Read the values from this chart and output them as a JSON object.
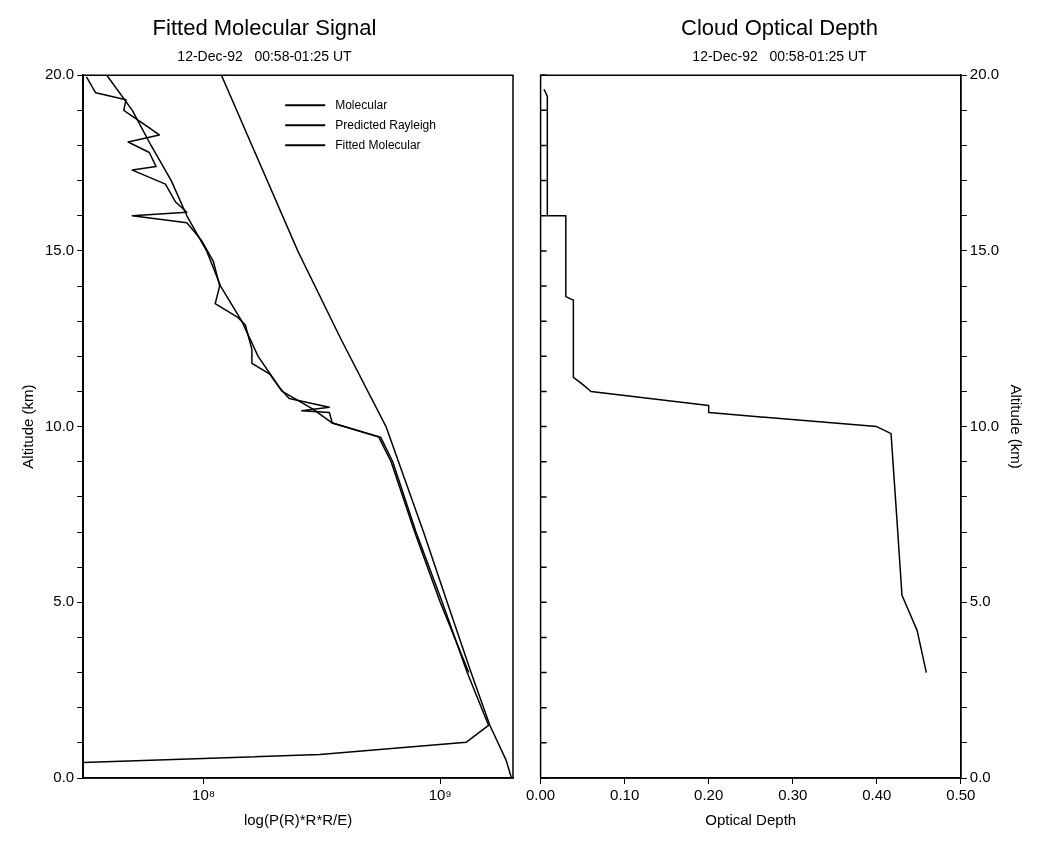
{
  "chart_data": [
    {
      "type": "line",
      "title": "Fitted Molecular Signal",
      "subtitle": "12-Dec-92   00:58-01:25 UT",
      "xlabel": "log(P(R)*R*R/E)",
      "ylabel": "Altitude (km)",
      "log": "x",
      "xlim": [
        31000000,
        2030000000
      ],
      "xticks": [
        {
          "value": 100000000,
          "label": "10⁸"
        },
        {
          "value": 1000000000,
          "label": "10⁹"
        }
      ],
      "ylim": [
        0,
        20
      ],
      "yticks": [
        {
          "value": 0,
          "label": "0.0"
        },
        {
          "value": 1,
          "label": null
        },
        {
          "value": 2,
          "label": null
        },
        {
          "value": 3,
          "label": null
        },
        {
          "value": 4,
          "label": null
        },
        {
          "value": 5,
          "label": "5.0"
        },
        {
          "value": 6,
          "label": null
        },
        {
          "value": 7,
          "label": null
        },
        {
          "value": 8,
          "label": null
        },
        {
          "value": 9,
          "label": null
        },
        {
          "value": 10,
          "label": "10.0"
        },
        {
          "value": 11,
          "label": null
        },
        {
          "value": 12,
          "label": null
        },
        {
          "value": 13,
          "label": null
        },
        {
          "value": 14,
          "label": null
        },
        {
          "value": 15,
          "label": "15.0"
        },
        {
          "value": 16,
          "label": null
        },
        {
          "value": 17,
          "label": null
        },
        {
          "value": 18,
          "label": null
        },
        {
          "value": 19,
          "label": null
        },
        {
          "value": 20,
          "label": "20.0"
        }
      ],
      "legend": "top right",
      "marker": "none",
      "series": [
        {
          "name": "Molecular",
          "color": "#000000",
          "x": [
            31000000,
            310000000,
            1290000000,
            1600000000,
            1300000000,
            1020000000,
            790000000,
            630000000,
            560000000,
            350000000,
            340000000,
            260000000,
            340000000,
            230000000,
            210000000,
            190000000,
            160000000,
            160000000,
            150000000,
            140000000,
            112000000,
            117000000,
            110000000,
            98000000,
            85000000,
            50000000,
            85000000,
            76000000,
            69000000,
            50000000,
            63000000,
            59000000,
            48000000,
            65000000,
            59000000,
            46000000,
            47000000,
            35000000,
            32000000
          ],
          "values": [
            0.44,
            0.67,
            1.02,
            1.5,
            3,
            5,
            7,
            9,
            9.7,
            10.1,
            10.4,
            10.45,
            10.55,
            10.8,
            11.1,
            11.5,
            11.8,
            12.2,
            12.9,
            13.1,
            13.5,
            14.0,
            14.7,
            15.3,
            15.8,
            16.0,
            16.1,
            16.4,
            16.9,
            17.3,
            17.4,
            17.8,
            18.1,
            18.3,
            18.5,
            19.0,
            19.3,
            19.5,
            19.95
          ]
        },
        {
          "name": "Predicted Rayleigh",
          "color": "#000000",
          "x": [
            2000000000,
            1900000000,
            1620000000,
            1350000000,
            1070000000,
            850000000,
            590000000,
            380000000,
            250000000,
            119000000
          ],
          "values": [
            0,
            0.5,
            1.5,
            3,
            5,
            7,
            10,
            12.5,
            15,
            20
          ]
        },
        {
          "name": "Fitted Molecular",
          "color": "#000000",
          "x": [
            1320000000,
            1000000000,
            780000000,
            620000000,
            550000000,
            350000000,
            290000000,
            215000000,
            170000000,
            145000000,
            118000000,
            103000000,
            85000000,
            73000000,
            60000000,
            50000000,
            39000000
          ],
          "values": [
            3,
            5,
            7,
            9,
            9.7,
            10.1,
            10.5,
            11,
            12,
            13,
            14,
            15,
            16,
            17,
            18,
            19,
            20
          ]
        }
      ]
    },
    {
      "type": "line",
      "title": "Cloud Optical Depth",
      "subtitle": "12-Dec-92   00:58-01:25 UT",
      "xlabel": "Optical Depth",
      "y2label": "Altitude (km)",
      "xlim": [
        0,
        0.5
      ],
      "xticks": [
        {
          "value": 0,
          "label": "0.00"
        },
        {
          "value": 0.1,
          "label": "0.10"
        },
        {
          "value": 0.2,
          "label": "0.20"
        },
        {
          "value": 0.3,
          "label": "0.30"
        },
        {
          "value": 0.4,
          "label": "0.40"
        },
        {
          "value": 0.5,
          "label": "0.50"
        }
      ],
      "y2lim": [
        0,
        20
      ],
      "y2ticks": [
        {
          "value": 0,
          "label": "0.0"
        },
        {
          "value": 1,
          "label": null
        },
        {
          "value": 2,
          "label": null
        },
        {
          "value": 3,
          "label": null
        },
        {
          "value": 4,
          "label": null
        },
        {
          "value": 5,
          "label": "5.0"
        },
        {
          "value": 6,
          "label": null
        },
        {
          "value": 7,
          "label": null
        },
        {
          "value": 8,
          "label": null
        },
        {
          "value": 9,
          "label": null
        },
        {
          "value": 10,
          "label": "10.0"
        },
        {
          "value": 11,
          "label": null
        },
        {
          "value": 12,
          "label": null
        },
        {
          "value": 13,
          "label": null
        },
        {
          "value": 14,
          "label": null
        },
        {
          "value": 15,
          "label": "15.0"
        },
        {
          "value": 16,
          "label": null
        },
        {
          "value": 17,
          "label": null
        },
        {
          "value": 18,
          "label": null
        },
        {
          "value": 19,
          "label": null
        },
        {
          "value": 20,
          "label": "20.0"
        }
      ],
      "marker": "none",
      "series": [
        {
          "color": "#000000",
          "axis": "y2",
          "x": [
            0.004,
            0.008,
            0.008,
            0.03,
            0.03,
            0.039,
            0.039,
            0.05,
            0.06,
            0.2,
            0.2,
            0.4,
            0.417,
            0.423,
            0.43,
            0.448,
            0.459
          ],
          "values": [
            19.6,
            19.4,
            16.0,
            16.0,
            13.7,
            13.6,
            11.4,
            11.2,
            11.0,
            10.6,
            10.4,
            10.0,
            9.8,
            7.7,
            5.2,
            4.2,
            3.0
          ]
        }
      ]
    }
  ]
}
